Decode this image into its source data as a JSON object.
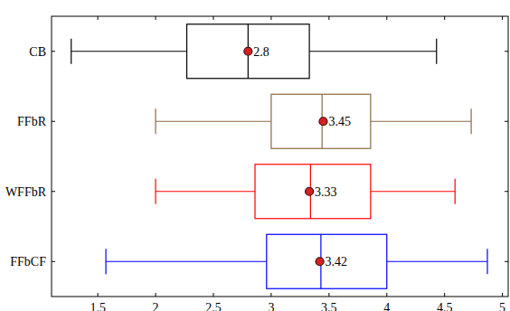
{
  "chart_data": {
    "type": "box",
    "orientation": "horizontal",
    "categories": [
      "CB",
      "FFbR",
      "WFFbR",
      "FFbCF"
    ],
    "boxes": [
      {
        "color": "#000000",
        "min": 1.27,
        "q1": 2.27,
        "median": 2.8,
        "q3": 3.33,
        "max": 4.43,
        "mean": 2.8
      },
      {
        "color": "#8b6a45",
        "min": 2.0,
        "q1": 3.0,
        "median": 3.44,
        "q3": 3.86,
        "max": 4.73,
        "mean": 3.45
      },
      {
        "color": "#ff0000",
        "min": 2.0,
        "q1": 2.86,
        "median": 3.34,
        "q3": 3.86,
        "max": 4.59,
        "mean": 3.33
      },
      {
        "color": "#0000ff",
        "min": 1.57,
        "q1": 2.96,
        "median": 3.43,
        "q3": 4.0,
        "max": 4.87,
        "mean": 3.42
      }
    ],
    "data_labels": true,
    "xlim": [
      1.1,
      5.05
    ],
    "xticks": [
      1.5,
      2,
      2.5,
      3,
      3.5,
      4,
      4.5,
      5
    ]
  }
}
